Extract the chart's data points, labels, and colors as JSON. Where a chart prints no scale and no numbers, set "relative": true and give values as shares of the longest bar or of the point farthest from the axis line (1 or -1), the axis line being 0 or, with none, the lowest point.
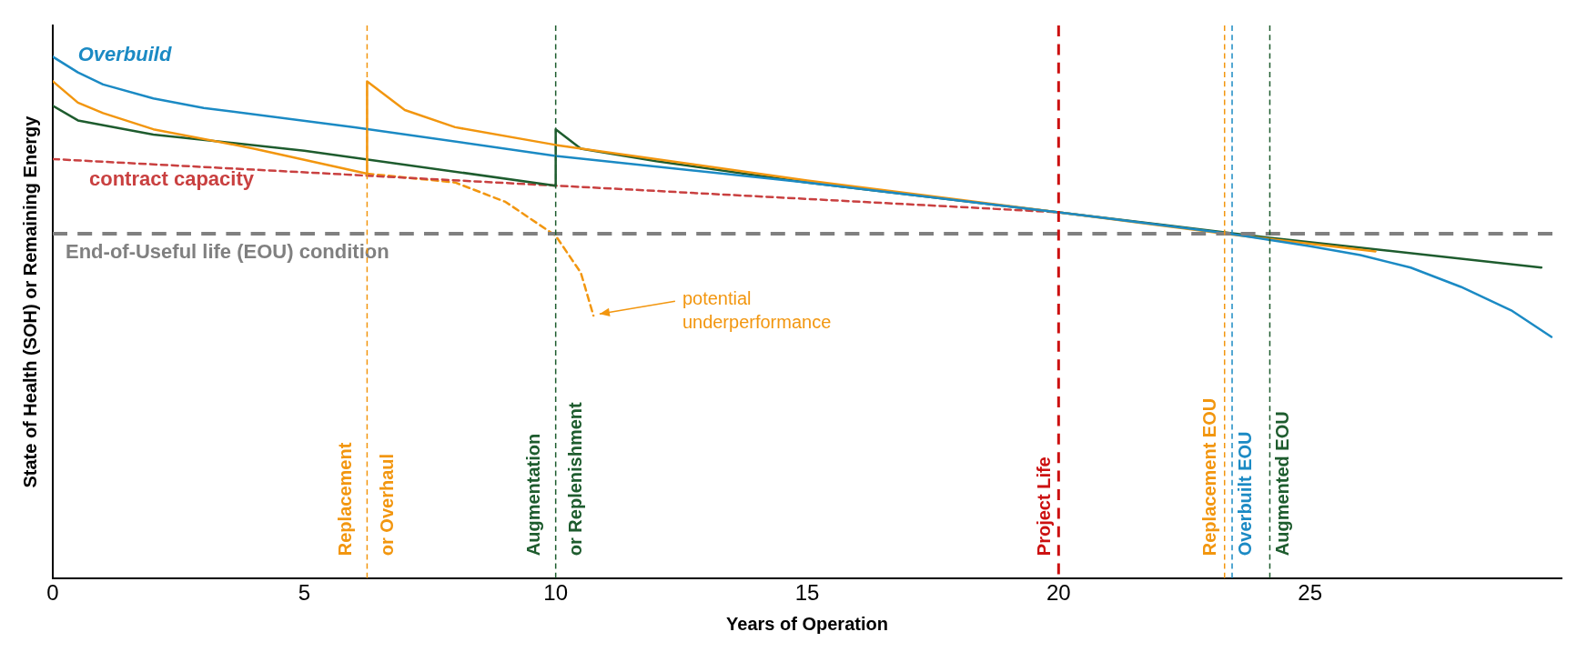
{
  "chart_data": {
    "type": "line",
    "relative": true,
    "xlabel": "Years of Operation",
    "ylabel": "State of Health (SOH) or Remaining Energy",
    "xlim": [
      0,
      30
    ],
    "xticks": [
      0,
      5,
      10,
      15,
      20,
      25
    ],
    "legend": false,
    "grid": false,
    "marker": "none",
    "series": [
      {
        "name": "Overbuild",
        "color": "#1b8ac4",
        "x": [
          0,
          0.5,
          1,
          2,
          3,
          6,
          10,
          15,
          20,
          23.4,
          25,
          26,
          27,
          28,
          29,
          29.8
        ],
        "values": [
          1.0,
          0.97,
          0.947,
          0.92,
          0.902,
          0.865,
          0.81,
          0.759,
          0.702,
          0.661,
          0.637,
          0.62,
          0.596,
          0.559,
          0.514,
          0.463
        ]
      },
      {
        "color": "#f2960f",
        "x": [
          0,
          0.5,
          1,
          2,
          4,
          6.25,
          6.25,
          7,
          8,
          10,
          15,
          20,
          23.3,
          26.3
        ],
        "values": [
          0.953,
          0.912,
          0.892,
          0.861,
          0.824,
          0.776,
          0.953,
          0.898,
          0.865,
          0.831,
          0.763,
          0.702,
          0.661,
          0.627
        ]
      },
      {
        "color": "#1e5c2e",
        "x": [
          0,
          0.5,
          2,
          5,
          10,
          10,
          10.5,
          12,
          15,
          20,
          24.2,
          29.6
        ],
        "values": [
          0.906,
          0.878,
          0.851,
          0.82,
          0.753,
          0.861,
          0.824,
          0.8,
          0.759,
          0.702,
          0.653,
          0.596
        ]
      },
      {
        "name": "contract capacity",
        "color": "#c94040",
        "line_style": "dashed",
        "x": [
          0,
          20
        ],
        "values": [
          0.804,
          0.702
        ]
      },
      {
        "color": "#f2960f",
        "line_style": "dashed",
        "x": [
          6.25,
          8,
          9,
          10,
          10.5,
          10.75
        ],
        "values": [
          0.776,
          0.759,
          0.722,
          0.657,
          0.586,
          0.504
        ]
      }
    ],
    "ref_lines": [
      {
        "axis": "y",
        "value": 0.661,
        "label": "End-of-Useful life (EOU) condition",
        "color": "#808080",
        "line_style": "dashed"
      },
      {
        "axis": "x",
        "value": 6.25,
        "label": "Replacement\nor Overhaul",
        "color": "#f2960f",
        "line_style": "dashed"
      },
      {
        "axis": "x",
        "value": 10,
        "label": "Augmentation\nor Replenishment",
        "color": "#1e5c2e",
        "line_style": "dashed"
      },
      {
        "axis": "x",
        "value": 20,
        "label": "Project Life",
        "color": "#cc1111",
        "line_style": "dashed"
      },
      {
        "axis": "x",
        "value": 23.3,
        "label": "Replacement EOU",
        "color": "#f2960f",
        "line_style": "dashed"
      },
      {
        "axis": "x",
        "value": 23.45,
        "label": "Overbuilt EOU",
        "color": "#1b8ac4",
        "line_style": "dashed"
      },
      {
        "axis": "x",
        "value": 24.2,
        "label": "Augmented EOU",
        "color": "#1e5c2e",
        "line_style": "dashed"
      }
    ],
    "annotations": [
      {
        "text": "potential\nunderperformance",
        "x": 10.8,
        "y": 0.5
      }
    ]
  }
}
